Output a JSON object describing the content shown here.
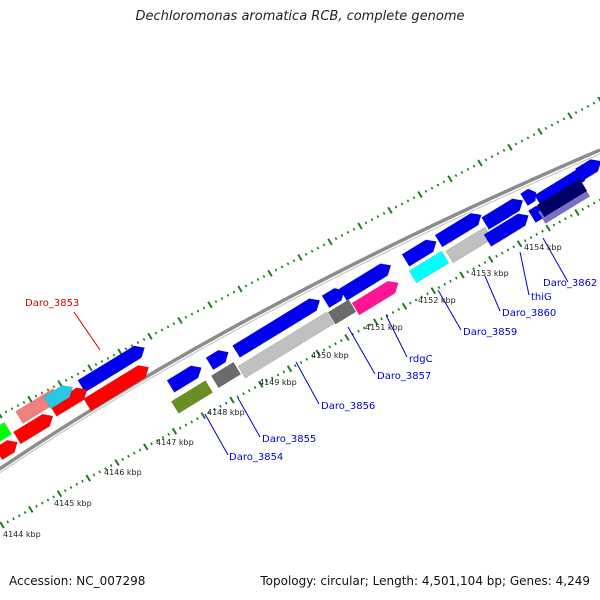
{
  "title": "Dechloromonas aromatica RCB, complete genome",
  "footer": {
    "accession": "Accession: NC_007298",
    "summary": "Topology: circular; Length: 4,501,104 bp; Genes: 4,249"
  },
  "map": {
    "backbone_color": "#8c8c8c",
    "tick_color": "#1f7a1f",
    "tick_labels": [
      "4144 kbp",
      "4145 kbp",
      "4146 kbp",
      "4147 kbp",
      "4148 kbp",
      "4149 kbp",
      "4150 kbp",
      "4151 kbp",
      "4152 kbp",
      "4153 kbp",
      "4154 kbp"
    ],
    "gene_labels": [
      {
        "text": "Daro_3853",
        "color": "#cc0000"
      },
      {
        "text": "Daro_3854",
        "color": "#0000cc"
      },
      {
        "text": "Daro_3855",
        "color": "#0000cc"
      },
      {
        "text": "Daro_3856",
        "color": "#0000cc"
      },
      {
        "text": "Daro_3857",
        "color": "#0000cc"
      },
      {
        "text": "rdgC",
        "color": "#0000cc"
      },
      {
        "text": "Daro_3859",
        "color": "#0000cc"
      },
      {
        "text": "Daro_3860",
        "color": "#0000cc"
      },
      {
        "text": "thiG",
        "color": "#0000cc"
      },
      {
        "text": "Daro_3862",
        "color": "#0000cc"
      }
    ],
    "feature_colors": [
      "#0000ee",
      "#ff0000",
      "#f08080",
      "#29c6e6",
      "#c0c0c0",
      "#6b6b6b",
      "#ff1493",
      "#00ffff",
      "#6b8e23",
      "#00ff00",
      "#000066",
      "#7a70c8"
    ]
  }
}
